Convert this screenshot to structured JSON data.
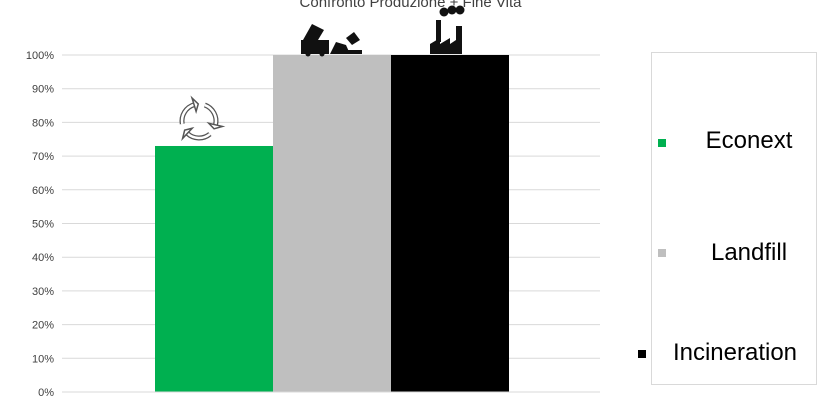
{
  "chart_data": {
    "type": "bar",
    "title": "Confronto Produzione + Fine Vita",
    "categories": [
      "Econext",
      "Landfill",
      "Incineration"
    ],
    "values": [
      73,
      100,
      100
    ],
    "colors": [
      "#00b050",
      "#bfbfbf",
      "#000000"
    ],
    "icons": [
      "recycle-icon",
      "landfill-truck-icon",
      "factory-icon"
    ],
    "ylim": [
      0,
      100
    ],
    "yticks": [
      "0%",
      "10%",
      "20%",
      "30%",
      "40%",
      "50%",
      "60%",
      "70%",
      "80%",
      "90%",
      "100%"
    ],
    "grid": true,
    "legend_position": "right",
    "legend": [
      {
        "label": "Econext",
        "color": "#00b050"
      },
      {
        "label": "Landfill",
        "color": "#bfbfbf"
      },
      {
        "label": "Incineration",
        "color": "#000000"
      }
    ]
  }
}
